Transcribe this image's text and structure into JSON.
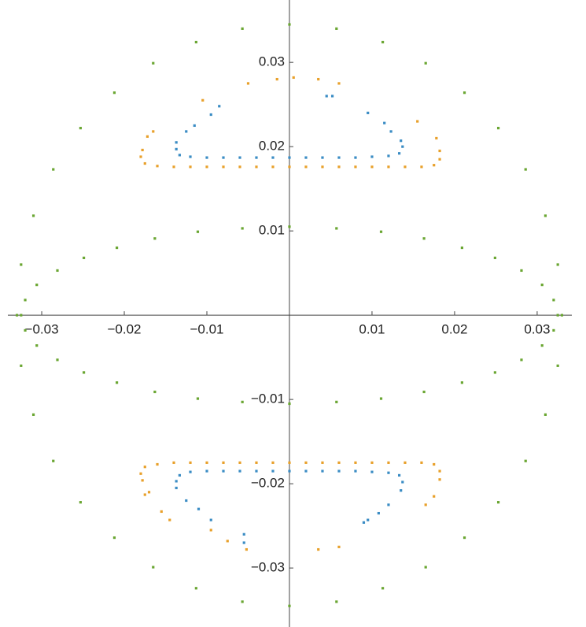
{
  "chart_data": {
    "type": "scatter",
    "xlim": [
      -0.0341,
      0.0342
    ],
    "ylim": [
      -0.037,
      0.0374
    ],
    "xticks": [
      {
        "value": -0.03,
        "label": "−0.03"
      },
      {
        "value": -0.02,
        "label": "−0.02"
      },
      {
        "value": -0.01,
        "label": "−0.01"
      },
      0.01,
      0.02,
      0.03
    ],
    "yticks": [
      {
        "value": -0.03,
        "label": "−0.03"
      },
      {
        "value": -0.02,
        "label": "−0.02"
      },
      {
        "value": -0.01,
        "label": "−0.01"
      },
      0.01,
      0.02,
      0.03
    ],
    "series": [
      {
        "color": "#6aa632",
        "x": [
          0.033,
          0.0325,
          0.031,
          0.0286,
          0.0253,
          0.0212,
          0.0165,
          0.0113,
          0.0057,
          0,
          -0.0057,
          -0.0113,
          -0.0165,
          -0.0212,
          -0.0253,
          -0.0286,
          -0.031,
          -0.0325,
          -0.033,
          -0.0325,
          -0.031,
          -0.0286,
          -0.0253,
          -0.0212,
          -0.0165,
          -0.0113,
          -0.0057,
          0,
          0.0057,
          0.0113,
          0.0165,
          0.0212,
          0.0253,
          0.0286,
          0.031,
          0.0325
        ],
        "y": [
          0,
          0.006,
          0.0118,
          0.0173,
          0.0222,
          0.0264,
          0.0299,
          0.0324,
          0.034,
          0.0345,
          0.034,
          0.0324,
          0.0299,
          0.0264,
          0.0222,
          0.0173,
          0.0118,
          0.006,
          0,
          -0.006,
          -0.0118,
          -0.0173,
          -0.0222,
          -0.0264,
          -0.0299,
          -0.0324,
          -0.034,
          -0.0345,
          -0.034,
          -0.0324,
          -0.0299,
          -0.0264,
          -0.0222,
          -0.0173,
          -0.0118,
          -0.006
        ]
      },
      {
        "color": "#6aa632",
        "x": [
          0.0325,
          0.032,
          0.0306,
          0.0281,
          0.0249,
          0.0209,
          0.0163,
          0.0111,
          0.0057,
          0,
          -0.0057,
          -0.0111,
          -0.0163,
          -0.0209,
          -0.0249,
          -0.0281,
          -0.0306,
          -0.032,
          -0.0325,
          -0.032,
          -0.0306,
          -0.0281,
          -0.0249,
          -0.0209,
          -0.0163,
          -0.0111,
          -0.0057,
          0,
          0.0057,
          0.0111,
          0.0163,
          0.0209,
          0.0249,
          0.0281,
          0.0306,
          0.032
        ],
        "y": [
          0,
          0.0018,
          0.0036,
          0.0053,
          0.0068,
          0.008,
          0.0091,
          0.0099,
          0.0103,
          0.0105,
          0.0103,
          0.0099,
          0.0091,
          0.008,
          0.0068,
          0.0053,
          0.0036,
          0.0018,
          0,
          -0.0018,
          -0.0036,
          -0.0053,
          -0.0068,
          -0.008,
          -0.0091,
          -0.0099,
          -0.0103,
          -0.0105,
          -0.0103,
          -0.0099,
          -0.0091,
          -0.008,
          -0.0068,
          -0.0053,
          -0.0036,
          -0.0018
        ]
      },
      {
        "color": "#3a8cc4",
        "x": [
          -0.0137,
          -0.0137,
          -0.0133,
          -0.012,
          -0.01,
          -0.008,
          -0.006,
          -0.004,
          -0.002,
          0,
          0.002,
          0.004,
          0.006,
          0.008,
          0.01,
          0.012,
          0.0133,
          0.0137,
          0.0135,
          -0.0125,
          -0.0115,
          -0.0095,
          -0.0085,
          0.0045,
          0.0052,
          0.0095,
          0.0115,
          0.0123
        ],
        "y": [
          0.0205,
          0.0197,
          0.019,
          0.0188,
          0.0187,
          0.0187,
          0.0187,
          0.0187,
          0.0187,
          0.0187,
          0.0187,
          0.0187,
          0.0187,
          0.0187,
          0.0188,
          0.0189,
          0.0192,
          0.02,
          0.0207,
          0.0218,
          0.0225,
          0.0238,
          0.0248,
          0.026,
          0.026,
          0.024,
          0.0228,
          0.0218
        ]
      },
      {
        "color": "#3a8cc4",
        "x": [
          -0.0137,
          -0.0137,
          -0.0133,
          -0.012,
          -0.01,
          -0.008,
          -0.006,
          -0.004,
          -0.002,
          0,
          0.002,
          0.004,
          0.006,
          0.008,
          0.01,
          0.012,
          0.0133,
          0.0137,
          0.0135,
          -0.0125,
          -0.011,
          -0.0095,
          -0.0055,
          -0.0055,
          0.009,
          0.0095,
          0.0108,
          0.012
        ],
        "y": [
          -0.0205,
          -0.0197,
          -0.019,
          -0.0186,
          -0.0185,
          -0.0185,
          -0.0185,
          -0.0185,
          -0.0185,
          -0.0185,
          -0.0185,
          -0.0185,
          -0.0185,
          -0.0185,
          -0.0186,
          -0.0187,
          -0.019,
          -0.0198,
          -0.0208,
          -0.022,
          -0.023,
          -0.0243,
          -0.026,
          -0.027,
          -0.0246,
          -0.0243,
          -0.0235,
          -0.0225
        ]
      },
      {
        "color": "#e8a02a",
        "x": [
          -0.0178,
          -0.018,
          -0.0175,
          -0.016,
          -0.014,
          -0.012,
          -0.01,
          -0.008,
          -0.006,
          -0.004,
          -0.002,
          0,
          0.002,
          0.004,
          0.006,
          0.008,
          0.01,
          0.012,
          0.014,
          0.016,
          0.0175,
          0.0182,
          0.0182,
          -0.0172,
          -0.0165,
          -0.0105,
          -0.005,
          -0.0015,
          0.0005,
          0.0035,
          0.006,
          0.0155,
          0.0178
        ],
        "y": [
          0.0196,
          0.0188,
          0.018,
          0.0177,
          0.0176,
          0.0176,
          0.0176,
          0.0176,
          0.0176,
          0.0176,
          0.0176,
          0.0176,
          0.0176,
          0.0176,
          0.0176,
          0.0176,
          0.0176,
          0.0176,
          0.0176,
          0.0176,
          0.0178,
          0.0185,
          0.0195,
          0.0212,
          0.0218,
          0.0255,
          0.0275,
          0.028,
          0.0282,
          0.028,
          0.0275,
          0.023,
          0.021
        ]
      },
      {
        "color": "#e8a02a",
        "x": [
          -0.0178,
          -0.018,
          -0.0175,
          -0.016,
          -0.014,
          -0.012,
          -0.01,
          -0.008,
          -0.006,
          -0.004,
          -0.002,
          0,
          0.002,
          0.004,
          0.006,
          0.008,
          0.01,
          0.012,
          0.014,
          0.016,
          0.0175,
          0.0182,
          0.0182,
          -0.0175,
          -0.017,
          -0.0155,
          -0.0145,
          -0.0095,
          -0.0075,
          -0.0052,
          0.0035,
          0.006,
          0.0165,
          0.0175
        ],
        "y": [
          -0.0196,
          -0.0188,
          -0.018,
          -0.0177,
          -0.0175,
          -0.0175,
          -0.0175,
          -0.0175,
          -0.0175,
          -0.0175,
          -0.0175,
          -0.0175,
          -0.0175,
          -0.0175,
          -0.0175,
          -0.0175,
          -0.0175,
          -0.0175,
          -0.0175,
          -0.0175,
          -0.0177,
          -0.0185,
          -0.0195,
          -0.0213,
          -0.021,
          -0.0233,
          -0.0243,
          -0.0255,
          -0.0268,
          -0.0278,
          -0.0278,
          -0.0275,
          -0.0225,
          -0.0215
        ]
      }
    ]
  }
}
